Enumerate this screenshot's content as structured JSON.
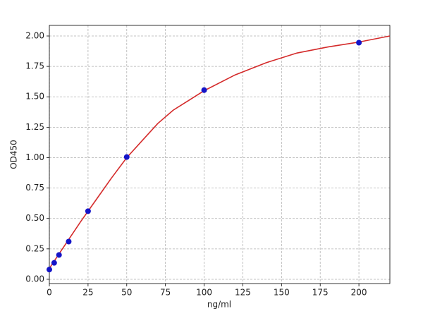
{
  "chart_data": {
    "type": "scatter",
    "xlabel": "ng/ml",
    "ylabel": "OD450",
    "x": [
      0,
      3.125,
      6.25,
      12.5,
      25,
      50,
      100,
      200
    ],
    "values": [
      0.08,
      0.135,
      0.2,
      0.31,
      0.56,
      1.005,
      1.555,
      1.945
    ],
    "color": "#1414c8",
    "fit": {
      "type": "line",
      "color": "#d42a2a",
      "x": [
        0,
        10,
        20,
        30,
        40,
        50,
        60,
        70,
        80,
        90,
        100,
        120,
        140,
        160,
        180,
        200,
        220
      ],
      "values": [
        0.09,
        0.28,
        0.47,
        0.65,
        0.83,
        1.0,
        1.14,
        1.28,
        1.39,
        1.47,
        1.55,
        1.68,
        1.78,
        1.86,
        1.91,
        1.95,
        2.0
      ]
    },
    "xlim": [
      0,
      220
    ],
    "ylim": [
      -0.035,
      2.087
    ],
    "xticks": [
      0,
      25,
      50,
      75,
      100,
      125,
      150,
      175,
      200
    ],
    "yticks": [
      {
        "value": 0,
        "label": "0.00"
      },
      {
        "value": 0.25,
        "label": "0.25"
      },
      {
        "value": 0.5,
        "label": "0.50"
      },
      {
        "value": 0.75,
        "label": "0.75"
      },
      {
        "value": 1,
        "label": "1.00"
      },
      {
        "value": 1.25,
        "label": "1.25"
      },
      {
        "value": 1.5,
        "label": "1.50"
      },
      {
        "value": 1.75,
        "label": "1.75"
      },
      {
        "value": 2,
        "label": "2.00"
      }
    ],
    "grid": true
  }
}
